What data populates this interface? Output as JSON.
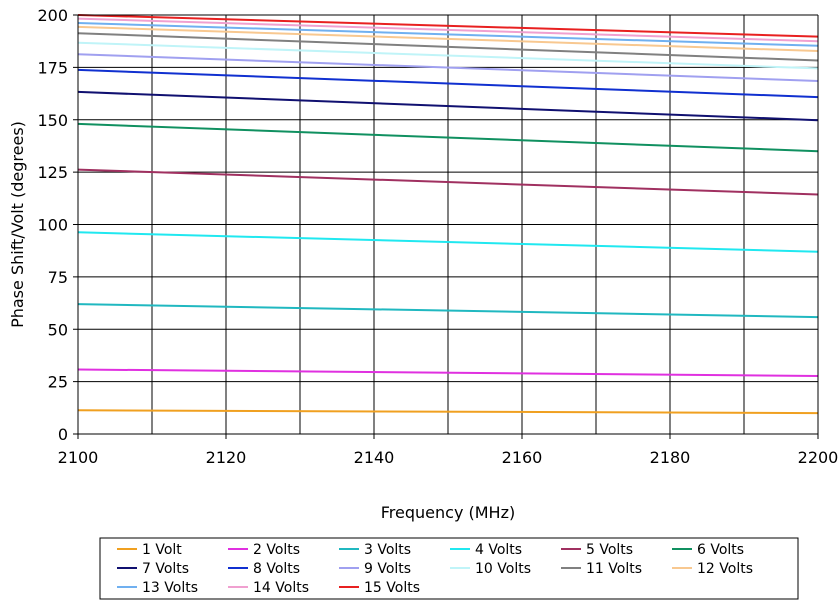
{
  "chart_data": {
    "type": "line",
    "title": "",
    "xlabel": "Frequency (MHz)",
    "ylabel": "Phase Shift/Volt (degrees)",
    "xlim": [
      2100,
      2200
    ],
    "ylim": [
      0,
      200
    ],
    "x_ticks": [
      2100,
      2120,
      2140,
      2160,
      2180,
      2200
    ],
    "y_ticks": [
      0,
      25,
      50,
      75,
      100,
      125,
      150,
      175,
      200
    ],
    "x_minor_gridlines_every": 10,
    "grid": true,
    "legend_position": "bottom",
    "x": [
      2100,
      2200
    ],
    "series": [
      {
        "name": "1 Volt",
        "color": "#f0a020",
        "values": [
          11.3,
          10.0
        ]
      },
      {
        "name": "2 Volts",
        "color": "#e030e0",
        "values": [
          30.8,
          27.7
        ]
      },
      {
        "name": "3 Volts",
        "color": "#20b8c0",
        "values": [
          62.0,
          55.8
        ]
      },
      {
        "name": "4 Volts",
        "color": "#20e8f0",
        "values": [
          96.3,
          87.0
        ]
      },
      {
        "name": "5 Volts",
        "color": "#a03060",
        "values": [
          126.2,
          114.3
        ]
      },
      {
        "name": "6 Volts",
        "color": "#109060",
        "values": [
          148.0,
          135.0
        ]
      },
      {
        "name": "7 Volts",
        "color": "#101070",
        "values": [
          163.3,
          149.8
        ]
      },
      {
        "name": "8 Volts",
        "color": "#1030d0",
        "values": [
          173.8,
          160.8
        ]
      },
      {
        "name": "9 Volts",
        "color": "#a0a0f0",
        "values": [
          181.3,
          168.5
        ]
      },
      {
        "name": "10 Volts",
        "color": "#c0f4f8",
        "values": [
          186.8,
          174.5
        ]
      },
      {
        "name": "11 Volts",
        "color": "#808080",
        "values": [
          191.3,
          178.3
        ]
      },
      {
        "name": "12 Volts",
        "color": "#f8c890",
        "values": [
          194.3,
          182.8
        ]
      },
      {
        "name": "13 Volts",
        "color": "#70b0f0",
        "values": [
          196.2,
          185.3
        ]
      },
      {
        "name": "14 Volts",
        "color": "#f0a0d0",
        "values": [
          198.3,
          187.5
        ]
      },
      {
        "name": "15 Volts",
        "color": "#e82020",
        "values": [
          200.0,
          189.7
        ]
      }
    ]
  }
}
